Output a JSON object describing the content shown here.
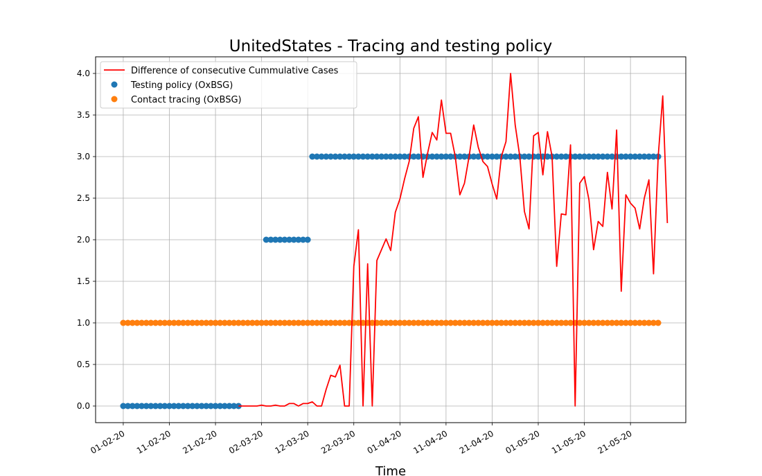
{
  "chart_data": {
    "type": "line",
    "title": "UnitedStates - Tracing and testing policy",
    "xlabel": "Time",
    "ylabel": "",
    "ylim": [
      -0.2,
      4.2
    ],
    "xlim_dates": [
      "2020-01-26",
      "2020-06-02"
    ],
    "x_tick_labels": [
      "01-02-20",
      "11-02-20",
      "21-02-20",
      "02-03-20",
      "12-03-20",
      "22-03-20",
      "01-04-20",
      "11-04-20",
      "21-04-20",
      "01-05-20",
      "11-05-20",
      "21-05-20"
    ],
    "x_tick_dates": [
      "2020-02-01",
      "2020-02-11",
      "2020-02-21",
      "2020-03-02",
      "2020-03-12",
      "2020-03-22",
      "2020-04-01",
      "2020-04-11",
      "2020-04-21",
      "2020-05-01",
      "2020-05-11",
      "2020-05-21"
    ],
    "y_ticks": [
      "0.0",
      "0.5",
      "1.0",
      "1.5",
      "2.0",
      "2.5",
      "3.0",
      "3.5",
      "4.0"
    ],
    "y_tick_values": [
      0,
      0.5,
      1.0,
      1.5,
      2.0,
      2.5,
      3.0,
      3.5,
      4.0
    ],
    "grid": true,
    "legend_position": "top-left",
    "series": [
      {
        "name": "Difference of consecutive Cummulative Cases",
        "kind": "line",
        "color": "#ff0000",
        "start_date": "2020-02-26",
        "end_date": "2020-05-28",
        "values": [
          0.0,
          0.0,
          0.0,
          0.0,
          0.0,
          0.0,
          0.0,
          0.0,
          0.0,
          0.0,
          0.0,
          0.0,
          0.0,
          0.0,
          0.0,
          0.0,
          0.0,
          0.0,
          0.0,
          0.0,
          0.0,
          0.0,
          0.0,
          0.0,
          0.0,
          0.0,
          0.0,
          0.0,
          0.0,
          0.0,
          0.01,
          0.0,
          0.0,
          0.0,
          0.0,
          0.0,
          0.0,
          0.0,
          0.0,
          0.0,
          0.0,
          0.0,
          0.0,
          0.0,
          0.0,
          0.0,
          0.0,
          0.0,
          0.0,
          0.0,
          0.0,
          0.0,
          0.0,
          0.0,
          0.0,
          0.0,
          0.0,
          0.0,
          0.0,
          0.0,
          0.0,
          0.0,
          0.0,
          0.0,
          0.0,
          0.0,
          0.0,
          0.0,
          0.0,
          0.0,
          0.0,
          0.0,
          0.0,
          0.0,
          0.0,
          0.0,
          0.0,
          0.0,
          0.0,
          0.0,
          0.0,
          0.0,
          0.0,
          0.0,
          0.0,
          0.0,
          0.0,
          0.0,
          0.0,
          0.0,
          0.0,
          0.0,
          0.0
        ],
        "points": [
          [
            "2020-03-01",
            0.0
          ],
          [
            "2020-03-02",
            0.01
          ],
          [
            "2020-03-03",
            0.0
          ],
          [
            "2020-03-04",
            0.0
          ],
          [
            "2020-03-05",
            0.01
          ],
          [
            "2020-03-06",
            0.0
          ],
          [
            "2020-03-07",
            0.0
          ],
          [
            "2020-03-08",
            0.03
          ],
          [
            "2020-03-09",
            0.03
          ],
          [
            "2020-03-10",
            0.0
          ],
          [
            "2020-03-11",
            0.03
          ],
          [
            "2020-03-12",
            0.03
          ],
          [
            "2020-03-13",
            0.05
          ],
          [
            "2020-03-14",
            0.0
          ],
          [
            "2020-03-15",
            0.0
          ],
          [
            "2020-03-16",
            0.2
          ],
          [
            "2020-03-17",
            0.37
          ],
          [
            "2020-03-18",
            0.35
          ],
          [
            "2020-03-19",
            0.49
          ],
          [
            "2020-03-20",
            0.0
          ],
          [
            "2020-03-21",
            0.0
          ],
          [
            "2020-03-22",
            1.68
          ],
          [
            "2020-03-23",
            2.12
          ],
          [
            "2020-03-24",
            0.0
          ],
          [
            "2020-03-25",
            1.71
          ],
          [
            "2020-03-26",
            0.0
          ],
          [
            "2020-03-27",
            1.75
          ],
          [
            "2020-03-28",
            1.88
          ],
          [
            "2020-03-29",
            2.01
          ],
          [
            "2020-03-30",
            1.87
          ],
          [
            "2020-03-31",
            2.33
          ],
          [
            "2020-04-01",
            2.49
          ],
          [
            "2020-04-02",
            2.73
          ],
          [
            "2020-04-03",
            2.94
          ],
          [
            "2020-04-04",
            3.34
          ],
          [
            "2020-04-05",
            3.48
          ],
          [
            "2020-04-06",
            2.75
          ],
          [
            "2020-04-07",
            3.04
          ],
          [
            "2020-04-08",
            3.29
          ],
          [
            "2020-04-09",
            3.2
          ],
          [
            "2020-04-10",
            3.68
          ],
          [
            "2020-04-11",
            3.28
          ],
          [
            "2020-04-12",
            3.28
          ],
          [
            "2020-04-13",
            3.0
          ],
          [
            "2020-04-14",
            2.54
          ],
          [
            "2020-04-15",
            2.68
          ],
          [
            "2020-04-16",
            3.0
          ],
          [
            "2020-04-17",
            3.38
          ],
          [
            "2020-04-18",
            3.11
          ],
          [
            "2020-04-19",
            2.94
          ],
          [
            "2020-04-20",
            2.88
          ],
          [
            "2020-04-21",
            2.67
          ],
          [
            "2020-04-22",
            2.49
          ],
          [
            "2020-04-23",
            3.0
          ],
          [
            "2020-04-24",
            3.18
          ],
          [
            "2020-04-25",
            4.0
          ],
          [
            "2020-04-26",
            3.38
          ],
          [
            "2020-04-27",
            3.0
          ],
          [
            "2020-04-28",
            2.34
          ],
          [
            "2020-04-29",
            2.13
          ],
          [
            "2020-04-30",
            3.25
          ],
          [
            "2020-05-01",
            3.29
          ],
          [
            "2020-05-02",
            2.78
          ],
          [
            "2020-05-03",
            3.3
          ],
          [
            "2020-05-04",
            3.0
          ],
          [
            "2020-05-05",
            1.68
          ],
          [
            "2020-05-06",
            2.31
          ],
          [
            "2020-05-07",
            2.3
          ],
          [
            "2020-05-08",
            3.14
          ],
          [
            "2020-05-09",
            0.0
          ],
          [
            "2020-05-10",
            2.68
          ],
          [
            "2020-05-11",
            2.76
          ],
          [
            "2020-05-12",
            2.48
          ],
          [
            "2020-05-13",
            1.88
          ],
          [
            "2020-05-14",
            2.22
          ],
          [
            "2020-05-15",
            2.16
          ],
          [
            "2020-05-16",
            2.81
          ],
          [
            "2020-05-17",
            2.37
          ],
          [
            "2020-05-18",
            3.32
          ],
          [
            "2020-05-19",
            1.38
          ],
          [
            "2020-05-20",
            2.54
          ],
          [
            "2020-05-21",
            2.44
          ],
          [
            "2020-05-22",
            2.38
          ],
          [
            "2020-05-23",
            2.13
          ],
          [
            "2020-05-24",
            2.5
          ],
          [
            "2020-05-25",
            2.72
          ],
          [
            "2020-05-26",
            1.59
          ],
          [
            "2020-05-27",
            2.99
          ],
          [
            "2020-05-28",
            3.73
          ],
          [
            "2020-05-29",
            2.2
          ]
        ]
      },
      {
        "name": "Testing policy (OxBSG)",
        "kind": "scatter",
        "color": "#1f77b4",
        "segments": [
          {
            "from": "2020-02-01",
            "to": "2020-02-26",
            "value": 0.0
          },
          {
            "from": "2020-03-03",
            "to": "2020-03-12",
            "value": 2.0
          },
          {
            "from": "2020-03-13",
            "to": "2020-05-27",
            "value": 3.0
          }
        ]
      },
      {
        "name": "Contact tracing (OxBSG)",
        "kind": "scatter",
        "color": "#ff7f0e",
        "segments": [
          {
            "from": "2020-02-01",
            "to": "2020-05-27",
            "value": 1.0
          }
        ]
      }
    ]
  }
}
